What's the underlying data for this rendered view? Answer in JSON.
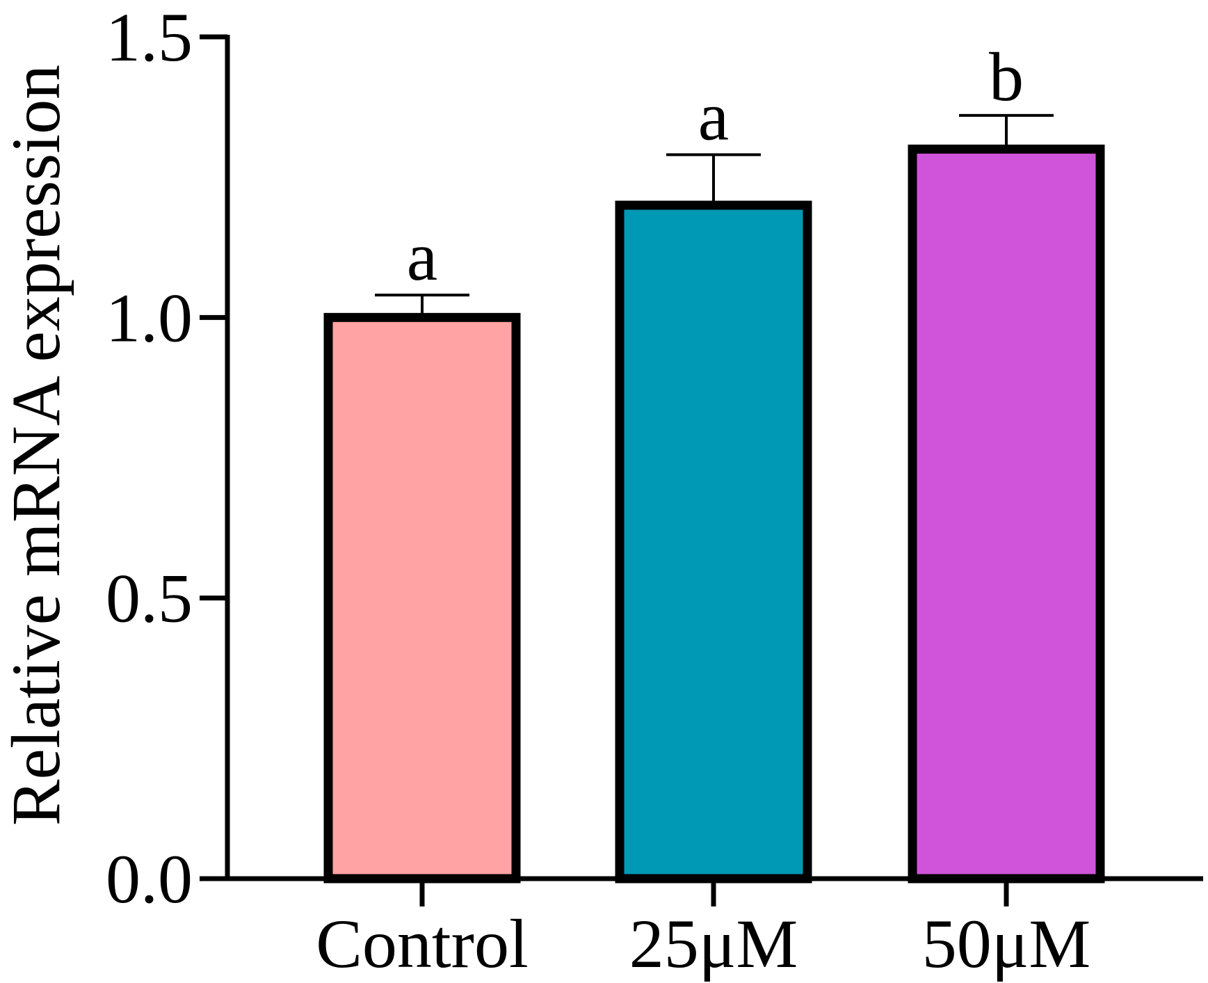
{
  "chart_data": {
    "type": "bar",
    "title": "",
    "xlabel": "",
    "ylabel": "Relative mRNA expression",
    "categories": [
      "Control",
      "25μM",
      "50μM"
    ],
    "values": [
      1.0,
      1.2,
      1.3
    ],
    "errors": [
      0.04,
      0.09,
      0.06
    ],
    "significance": [
      "a",
      "a",
      "b"
    ],
    "colors": [
      "#FFA3A4",
      "#0099B5",
      "#D054D9"
    ],
    "ylim": [
      0,
      1.5
    ],
    "yticks": [
      0.0,
      0.5,
      1.0,
      1.5
    ],
    "ytick_labels": [
      "0.0",
      "0.5",
      "1.0",
      "1.5"
    ],
    "grid": false,
    "legend": "none"
  }
}
